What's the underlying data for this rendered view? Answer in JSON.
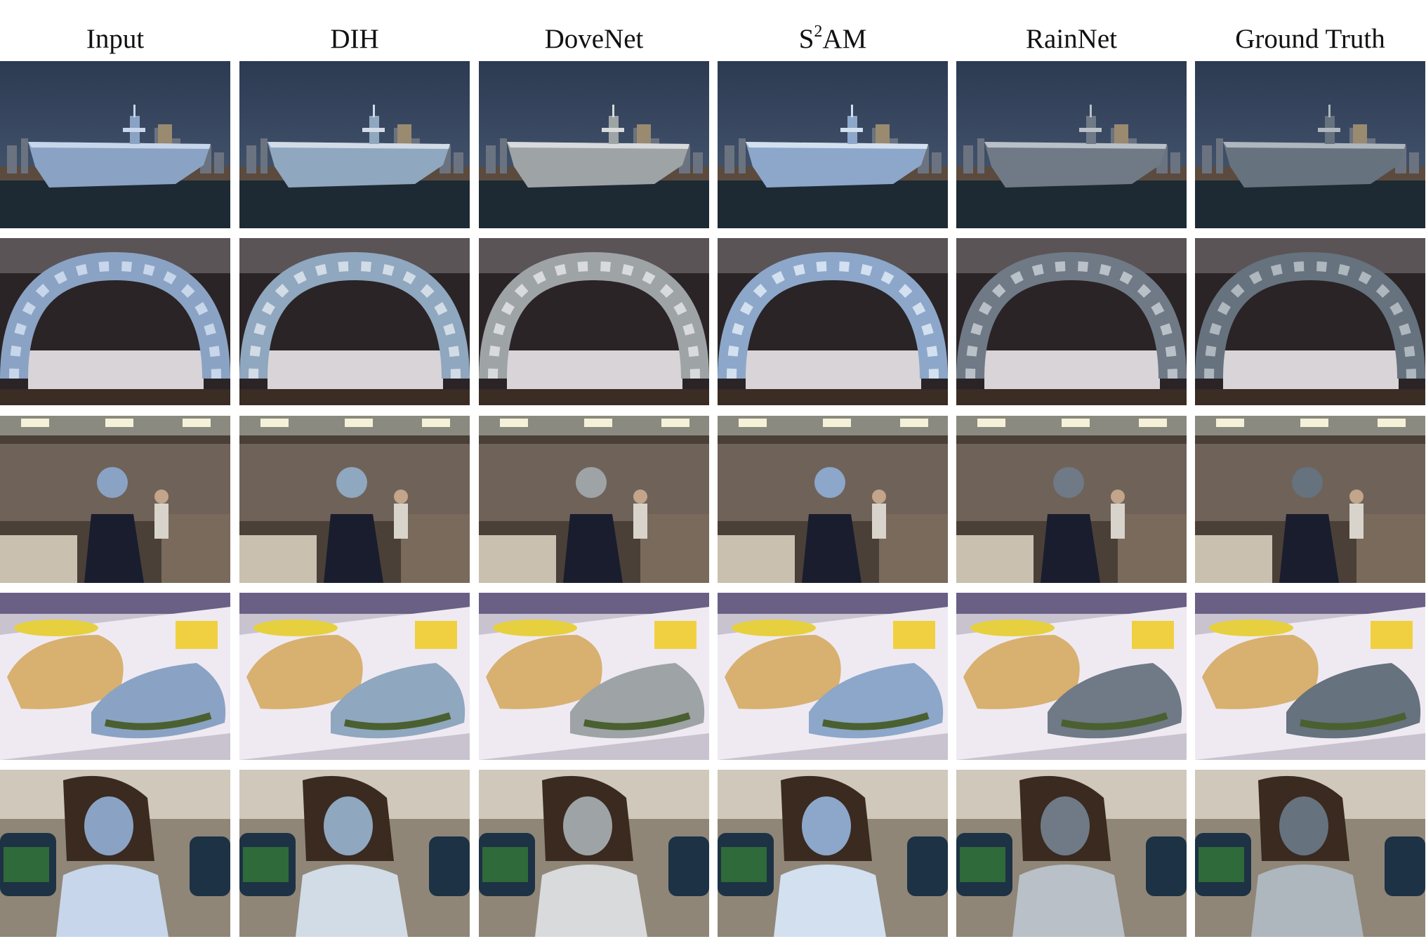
{
  "columns": [
    {
      "key": "input",
      "label": "Input"
    },
    {
      "key": "dih",
      "label": "DIH"
    },
    {
      "key": "dovenet",
      "label": "DoveNet"
    },
    {
      "key": "s2am",
      "label_base": "S",
      "label_sup": "2",
      "label_rest": "AM"
    },
    {
      "key": "rainnet",
      "label": "RainNet"
    },
    {
      "key": "gt",
      "label": "Ground Truth"
    }
  ],
  "rows": [
    {
      "scene": "aircraft-carrier-harbor"
    },
    {
      "scene": "balloon-arch-banquet-hall"
    },
    {
      "scene": "woman-in-cluttered-kitchen"
    },
    {
      "scene": "sandwich-in-plastic-tray"
    },
    {
      "scene": "girl-in-white-shirt"
    }
  ],
  "tints": {
    "input": {
      "subject": "#8aa3c4",
      "highlight": "#c7d6ea"
    },
    "dih": {
      "subject": "#8fa7bf",
      "highlight": "#d2dce6"
    },
    "dovenet": {
      "subject": "#9ea3a6",
      "highlight": "#d8dadb"
    },
    "s2am": {
      "subject": "#8ca7c9",
      "highlight": "#d3e0ef"
    },
    "rainnet": {
      "subject": "#6f7a86",
      "highlight": "#b9c0c7"
    },
    "gt": {
      "subject": "#66727e",
      "highlight": "#aeb6be"
    }
  }
}
